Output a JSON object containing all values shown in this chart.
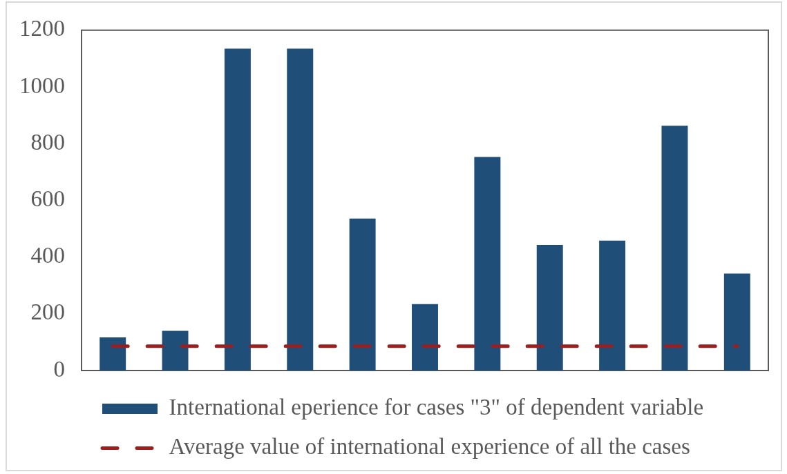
{
  "chart_data": {
    "type": "bar",
    "categories": [
      null,
      null,
      null,
      null,
      null,
      null,
      null,
      null,
      null,
      null,
      null
    ],
    "series": [
      {
        "name": "International eperience for cases \"3\" of dependent variable",
        "color": "#1f4e79",
        "values": [
          117,
          140,
          1135,
          1135,
          536,
          234,
          753,
          443,
          458,
          863,
          342
        ]
      },
      {
        "name": "Average value of international experience of all the cases",
        "type": "line",
        "color": "#9b1f1f",
        "values": [
          86,
          86,
          86,
          86,
          86,
          86,
          86,
          86,
          86,
          86,
          86
        ]
      }
    ],
    "ylim": [
      0,
      1200
    ],
    "yticks": [
      0,
      200,
      400,
      600,
      800,
      1000,
      1200
    ],
    "grid": false,
    "legend": "bottom",
    "tick_labels": "y",
    "line_style": "dashed",
    "marker": "none"
  }
}
